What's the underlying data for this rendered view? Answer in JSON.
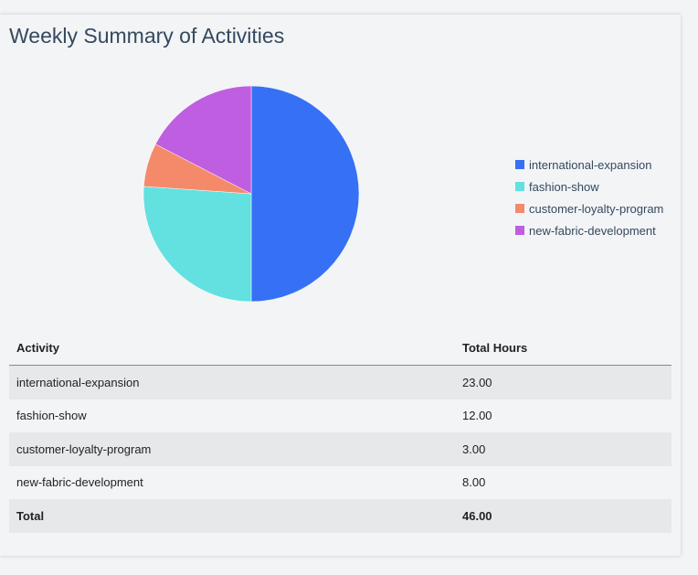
{
  "title": "Weekly Summary of Activities",
  "chart_data": {
    "type": "pie",
    "categories": [
      "international-expansion",
      "fashion-show",
      "customer-loyalty-program",
      "new-fabric-development"
    ],
    "values": [
      23,
      12,
      3,
      8
    ],
    "colors": [
      "#3670f4",
      "#63e0e0",
      "#f58a6a",
      "#bf5ee0"
    ],
    "legend_position": "right",
    "start": "top",
    "direction": "clockwise"
  },
  "table": {
    "headers": [
      "Activity",
      "Total Hours"
    ],
    "rows": [
      [
        "international-expansion",
        "23.00"
      ],
      [
        "fashion-show",
        "12.00"
      ],
      [
        "customer-loyalty-program",
        "3.00"
      ],
      [
        "new-fabric-development",
        "8.00"
      ]
    ],
    "total": [
      "Total",
      "46.00"
    ]
  }
}
